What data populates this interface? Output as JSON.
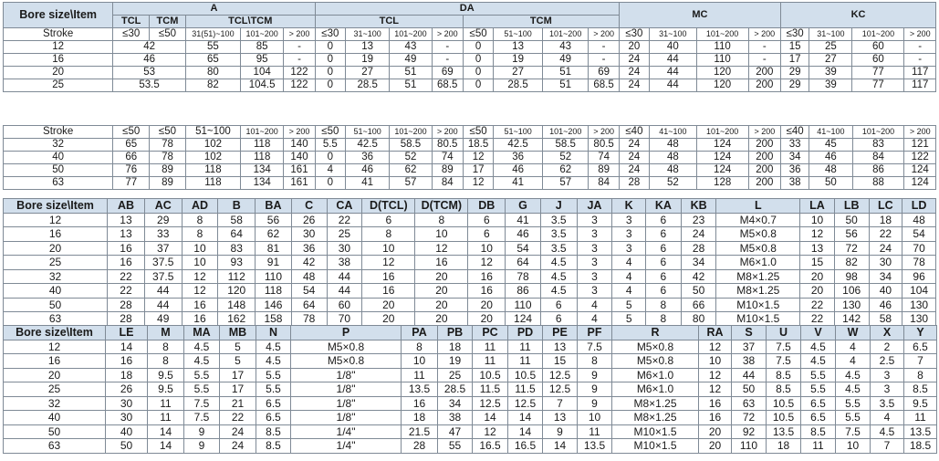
{
  "t1": {
    "corner": "Bore size\\Item",
    "groups": [
      "A",
      "DA",
      "MC",
      "KC"
    ],
    "subgroups": [
      "TCL",
      "TCM",
      "TCL\\TCM",
      "TCL",
      "TCM"
    ],
    "stroke_label": "Stroke",
    "strokes": [
      "≤30",
      "≤50",
      "31(51)~100",
      "101~200",
      "> 200",
      "≤30",
      "31~100",
      "101~200",
      "> 200",
      "≤50",
      "51~100",
      "101~200",
      "> 200",
      "≤30",
      "31~100",
      "101~200",
      "> 200",
      "≤30",
      "31~100",
      "101~200",
      "> 200"
    ],
    "rows": [
      {
        "bore": "12",
        "a12": "42",
        "v": [
          "55",
          "85",
          "-",
          "0",
          "13",
          "43",
          "-",
          "0",
          "13",
          "43",
          "-",
          "20",
          "40",
          "110",
          "-",
          "15",
          "25",
          "60",
          "-"
        ]
      },
      {
        "bore": "16",
        "a12": "46",
        "v": [
          "65",
          "95",
          "-",
          "0",
          "19",
          "49",
          "-",
          "0",
          "19",
          "49",
          "-",
          "24",
          "44",
          "110",
          "-",
          "17",
          "27",
          "60",
          "-"
        ]
      },
      {
        "bore": "20",
        "a12": "53",
        "v": [
          "80",
          "104",
          "122",
          "0",
          "27",
          "51",
          "69",
          "0",
          "27",
          "51",
          "69",
          "24",
          "44",
          "120",
          "200",
          "29",
          "39",
          "77",
          "117"
        ]
      },
      {
        "bore": "25",
        "a12": "53.5",
        "v": [
          "82",
          "104.5",
          "122",
          "0",
          "28.5",
          "51",
          "68.5",
          "0",
          "28.5",
          "51",
          "68.5",
          "24",
          "44",
          "120",
          "200",
          "29",
          "39",
          "77",
          "117"
        ]
      }
    ]
  },
  "t2": {
    "stroke_label": "Stroke",
    "strokes": [
      "≤50",
      "≤50",
      "51~100",
      "101~200",
      "> 200",
      "≤50",
      "51~100",
      "101~200",
      "> 200",
      "≤50",
      "51~100",
      "101~200",
      "> 200",
      "≤40",
      "41~100",
      "101~200",
      "> 200",
      "≤40",
      "41~100",
      "101~200",
      "> 200"
    ],
    "rows": [
      {
        "bore": "32",
        "v": [
          "65",
          "78",
          "102",
          "118",
          "140",
          "5.5",
          "42.5",
          "58.5",
          "80.5",
          "18.5",
          "42.5",
          "58.5",
          "80.5",
          "24",
          "48",
          "124",
          "200",
          "33",
          "45",
          "83",
          "121"
        ]
      },
      {
        "bore": "40",
        "v": [
          "66",
          "78",
          "102",
          "118",
          "140",
          "0",
          "36",
          "52",
          "74",
          "12",
          "36",
          "52",
          "74",
          "24",
          "48",
          "124",
          "200",
          "34",
          "46",
          "84",
          "122"
        ]
      },
      {
        "bore": "50",
        "v": [
          "76",
          "89",
          "118",
          "134",
          "161",
          "4",
          "46",
          "62",
          "89",
          "17",
          "46",
          "62",
          "89",
          "24",
          "48",
          "124",
          "200",
          "36",
          "48",
          "86",
          "124"
        ]
      },
      {
        "bore": "63",
        "v": [
          "77",
          "89",
          "118",
          "134",
          "161",
          "0",
          "41",
          "57",
          "84",
          "12",
          "41",
          "57",
          "84",
          "28",
          "52",
          "128",
          "200",
          "38",
          "50",
          "88",
          "124"
        ]
      }
    ]
  },
  "t3": {
    "corner": "Bore size\\Item",
    "headers": [
      "AB",
      "AC",
      "AD",
      "B",
      "BA",
      "C",
      "CA",
      "D(TCL)",
      "D(TCM)",
      "DB",
      "G",
      "J",
      "JA",
      "K",
      "KA",
      "KB",
      "L",
      "LA",
      "LB",
      "LC",
      "LD"
    ],
    "rows": [
      {
        "bore": "12",
        "v": [
          "13",
          "29",
          "8",
          "58",
          "56",
          "26",
          "22",
          "6",
          "8",
          "6",
          "41",
          "3.5",
          "3",
          "3",
          "6",
          "23",
          "M4×0.7",
          "10",
          "50",
          "18",
          "48"
        ]
      },
      {
        "bore": "16",
        "v": [
          "13",
          "33",
          "8",
          "64",
          "62",
          "30",
          "25",
          "8",
          "10",
          "6",
          "46",
          "3.5",
          "3",
          "3",
          "6",
          "24",
          "M5×0.8",
          "12",
          "56",
          "22",
          "54"
        ]
      },
      {
        "bore": "20",
        "v": [
          "16",
          "37",
          "10",
          "83",
          "81",
          "36",
          "30",
          "10",
          "12",
          "10",
          "54",
          "3.5",
          "3",
          "3",
          "6",
          "28",
          "M5×0.8",
          "13",
          "72",
          "24",
          "70"
        ]
      },
      {
        "bore": "25",
        "v": [
          "16",
          "37.5",
          "10",
          "93",
          "91",
          "42",
          "38",
          "12",
          "16",
          "12",
          "64",
          "4.5",
          "3",
          "4",
          "6",
          "34",
          "M6×1.0",
          "15",
          "82",
          "30",
          "78"
        ]
      },
      {
        "bore": "32",
        "v": [
          "22",
          "37.5",
          "12",
          "112",
          "110",
          "48",
          "44",
          "16",
          "20",
          "16",
          "78",
          "4.5",
          "3",
          "4",
          "6",
          "42",
          "M8×1.25",
          "20",
          "98",
          "34",
          "96"
        ]
      },
      {
        "bore": "40",
        "v": [
          "22",
          "44",
          "12",
          "120",
          "118",
          "54",
          "44",
          "16",
          "20",
          "16",
          "86",
          "4.5",
          "3",
          "4",
          "6",
          "50",
          "M8×1.25",
          "20",
          "106",
          "40",
          "104"
        ]
      },
      {
        "bore": "50",
        "v": [
          "28",
          "44",
          "16",
          "148",
          "146",
          "64",
          "60",
          "20",
          "20",
          "20",
          "110",
          "6",
          "4",
          "5",
          "8",
          "66",
          "M10×1.5",
          "22",
          "130",
          "46",
          "130"
        ]
      },
      {
        "bore": "63",
        "v": [
          "28",
          "49",
          "16",
          "162",
          "158",
          "78",
          "70",
          "20",
          "20",
          "20",
          "124",
          "6",
          "4",
          "5",
          "8",
          "80",
          "M10×1.5",
          "22",
          "142",
          "58",
          "130"
        ]
      }
    ]
  },
  "t4": {
    "corner": "Bore size\\Item",
    "headers": [
      "LE",
      "M",
      "MA",
      "MB",
      "N",
      "P",
      "PA",
      "PB",
      "PC",
      "PD",
      "PE",
      "PF",
      "R",
      "RA",
      "S",
      "U",
      "V",
      "W",
      "X",
      "Y"
    ],
    "rows": [
      {
        "bore": "12",
        "v": [
          "14",
          "8",
          "4.5",
          "5",
          "4.5",
          "M5×0.8",
          "8",
          "18",
          "11",
          "11",
          "13",
          "7.5",
          "M5×0.8",
          "12",
          "37",
          "7.5",
          "4.5",
          "4",
          "2",
          "6.5"
        ]
      },
      {
        "bore": "16",
        "v": [
          "16",
          "8",
          "4.5",
          "5",
          "4.5",
          "M5×0.8",
          "10",
          "19",
          "11",
          "11",
          "15",
          "8",
          "M5×0.8",
          "10",
          "38",
          "7.5",
          "4.5",
          "4",
          "2.5",
          "7"
        ]
      },
      {
        "bore": "20",
        "v": [
          "18",
          "9.5",
          "5.5",
          "17",
          "5.5",
          "1/8\"",
          "11",
          "25",
          "10.5",
          "10.5",
          "12.5",
          "9",
          "M6×1.0",
          "12",
          "44",
          "8.5",
          "5.5",
          "4.5",
          "3",
          "8"
        ]
      },
      {
        "bore": "25",
        "v": [
          "26",
          "9.5",
          "5.5",
          "17",
          "5.5",
          "1/8\"",
          "13.5",
          "28.5",
          "11.5",
          "11.5",
          "12.5",
          "9",
          "M6×1.0",
          "12",
          "50",
          "8.5",
          "5.5",
          "4.5",
          "3",
          "8.5"
        ]
      },
      {
        "bore": "32",
        "v": [
          "30",
          "11",
          "7.5",
          "21",
          "6.5",
          "1/8\"",
          "16",
          "34",
          "12.5",
          "12.5",
          "7",
          "9",
          "M8×1.25",
          "16",
          "63",
          "10.5",
          "6.5",
          "5.5",
          "3.5",
          "9.5"
        ]
      },
      {
        "bore": "40",
        "v": [
          "30",
          "11",
          "7.5",
          "22",
          "6.5",
          "1/8\"",
          "18",
          "38",
          "14",
          "14",
          "13",
          "10",
          "M8×1.25",
          "16",
          "72",
          "10.5",
          "6.5",
          "5.5",
          "4",
          "11"
        ]
      },
      {
        "bore": "50",
        "v": [
          "40",
          "14",
          "9",
          "24",
          "8.5",
          "1/4\"",
          "21.5",
          "47",
          "12",
          "14",
          "9",
          "11",
          "M10×1.5",
          "20",
          "92",
          "13.5",
          "8.5",
          "7.5",
          "4.5",
          "13.5"
        ]
      },
      {
        "bore": "63",
        "v": [
          "50",
          "14",
          "9",
          "24",
          "8.5",
          "1/4\"",
          "28",
          "55",
          "16.5",
          "16.5",
          "14",
          "13.5",
          "M10×1.5",
          "20",
          "110",
          "18",
          "11",
          "10",
          "7",
          "18.5"
        ]
      }
    ]
  }
}
